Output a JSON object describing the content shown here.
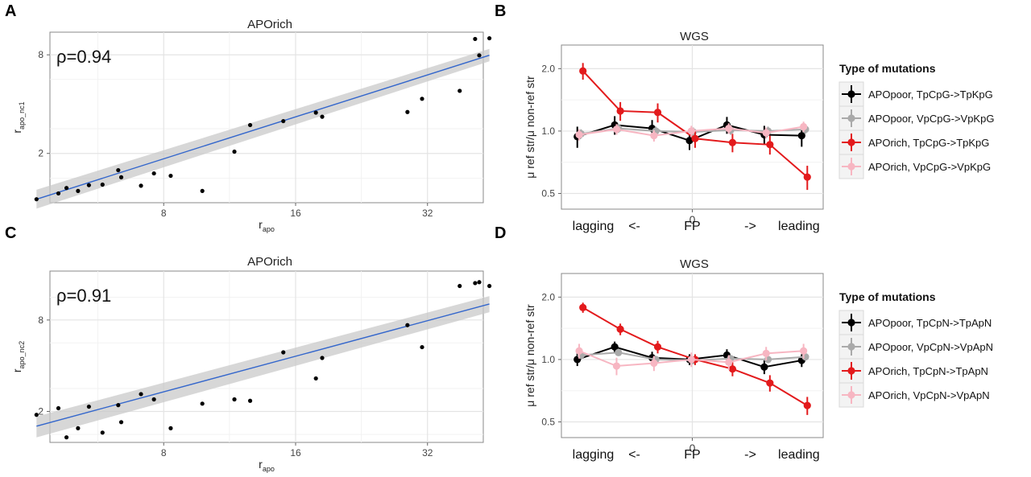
{
  "chart_data": [
    {
      "panel": "A",
      "type": "scatter",
      "title": "APOrich",
      "xlabel": "r",
      "xlabel_sub": "apo",
      "ylabel": "r",
      "ylabel_sub": "apo_nc1",
      "annotation": "ρ=0.94",
      "x_scale": "log2",
      "y_scale": "log2",
      "xlim": [
        3.8,
        46
      ],
      "ylim": [
        0.9,
        11
      ],
      "xticks": [
        8,
        16,
        32
      ],
      "yticks": [
        2,
        8
      ],
      "grid": true,
      "points": [
        [
          4.1,
          1.05
        ],
        [
          4.6,
          1.14
        ],
        [
          4.8,
          1.23
        ],
        [
          5.1,
          1.18
        ],
        [
          5.4,
          1.28
        ],
        [
          5.8,
          1.29
        ],
        [
          6.3,
          1.58
        ],
        [
          6.4,
          1.43
        ],
        [
          7.1,
          1.27
        ],
        [
          7.6,
          1.51
        ],
        [
          8.3,
          1.46
        ],
        [
          9.8,
          1.18
        ],
        [
          11.6,
          2.05
        ],
        [
          12.6,
          2.98
        ],
        [
          15.0,
          3.15
        ],
        [
          17.8,
          3.55
        ],
        [
          18.4,
          3.35
        ],
        [
          28.8,
          3.58
        ],
        [
          31.1,
          4.31
        ],
        [
          37.9,
          4.82
        ],
        [
          41.1,
          10.0
        ],
        [
          42.0,
          7.94
        ],
        [
          44.3,
          10.1
        ]
      ],
      "fit": {
        "x": [
          4.1,
          44.3
        ],
        "y": [
          1.05,
          7.95
        ],
        "band_lower": [
          0.92,
          7.3
        ],
        "band_upper": [
          1.2,
          8.7
        ]
      }
    },
    {
      "panel": "B",
      "type": "line",
      "title": "WGS",
      "ylabel": "μ ref str/μ non-ref str",
      "y_scale": "log",
      "ylim": [
        0.42,
        2.6
      ],
      "yticks": [
        0.5,
        1.0,
        2.0
      ],
      "xtick": "0",
      "x_bottom_labels": [
        "lagging",
        "<-",
        "FP",
        "->",
        "leading"
      ],
      "x_positions": [
        -6,
        -5,
        -4,
        -3,
        -2,
        -1,
        0,
        1,
        2,
        3,
        4,
        5,
        6
      ],
      "legend": {
        "title": "Type of mutations",
        "items": [
          "APOpoor, TpCpG->TpKpG",
          "APOpoor, VpCpG->VpKpG",
          "APOrich, TpCpG->TpKpG",
          "APOrich, VpCpG->VpKpG"
        ]
      },
      "series": [
        {
          "name": "APOpoor, TpCpG->TpKpG",
          "color": "#000000",
          "x": [
            -6,
            -4,
            -2,
            0,
            2,
            4,
            6
          ],
          "y": [
            0.94,
            1.07,
            1.03,
            0.9,
            1.07,
            0.96,
            0.95
          ],
          "err": [
            0.11,
            0.11,
            0.1,
            0.09,
            0.1,
            0.1,
            0.11
          ]
        },
        {
          "name": "APOpoor, VpCpG->VpKpG",
          "color": "#aaaaaa",
          "x": [
            -6,
            -4,
            -2,
            0,
            2,
            4,
            6
          ],
          "y": [
            0.97,
            1.03,
            1.0,
            0.99,
            1.01,
            1.0,
            1.02
          ],
          "err": [
            0.05,
            0.05,
            0.05,
            0.05,
            0.05,
            0.05,
            0.05
          ]
        },
        {
          "name": "APOrich, TpCpG->TpKpG",
          "color": "#e31a1c",
          "x": [
            -6,
            -4,
            -2,
            0,
            2,
            4,
            6
          ],
          "y": [
            1.95,
            1.25,
            1.23,
            0.92,
            0.88,
            0.86,
            0.6
          ],
          "err": [
            0.18,
            0.13,
            0.13,
            0.09,
            0.09,
            0.09,
            0.08
          ]
        },
        {
          "name": "APOrich, VpCpG->VpKpG",
          "color": "#f7b6c2",
          "x": [
            -6,
            -4,
            -2,
            0,
            2,
            4,
            6
          ],
          "y": [
            0.96,
            1.02,
            0.95,
            1.0,
            1.03,
            0.98,
            1.05
          ],
          "err": [
            0.06,
            0.06,
            0.06,
            0.06,
            0.06,
            0.06,
            0.06
          ]
        }
      ]
    },
    {
      "panel": "C",
      "type": "scatter",
      "title": "APOrich",
      "xlabel": "r",
      "xlabel_sub": "apo",
      "ylabel": "r",
      "ylabel_sub": "apo_nc2",
      "annotation": "ρ=0.91",
      "x_scale": "log2",
      "y_scale": "log2",
      "xlim": [
        3.8,
        46
      ],
      "ylim": [
        1.2,
        23
      ],
      "xticks": [
        8,
        16,
        32
      ],
      "yticks": [
        2,
        8
      ],
      "grid": true,
      "points": [
        [
          4.1,
          1.9
        ],
        [
          4.6,
          2.1
        ],
        [
          4.8,
          1.35
        ],
        [
          5.1,
          1.55
        ],
        [
          5.4,
          2.15
        ],
        [
          5.8,
          1.45
        ],
        [
          6.3,
          2.2
        ],
        [
          6.4,
          1.7
        ],
        [
          7.1,
          2.6
        ],
        [
          7.6,
          2.4
        ],
        [
          8.3,
          1.55
        ],
        [
          9.8,
          2.25
        ],
        [
          11.6,
          2.4
        ],
        [
          12.6,
          2.35
        ],
        [
          15.0,
          4.9
        ],
        [
          17.8,
          3.3
        ],
        [
          18.4,
          4.5
        ],
        [
          28.8,
          7.4
        ],
        [
          31.1,
          5.3
        ],
        [
          37.9,
          13.4
        ],
        [
          41.1,
          14.0
        ],
        [
          42.0,
          14.2
        ],
        [
          44.3,
          13.4
        ]
      ],
      "fit": {
        "x": [
          4.1,
          44.3
        ],
        "y": [
          1.6,
          10.2
        ],
        "band_lower": [
          1.35,
          9.0
        ],
        "band_upper": [
          1.85,
          11.5
        ]
      }
    },
    {
      "panel": "D",
      "type": "line",
      "title": "WGS",
      "ylabel": "μ ref str/μ non-ref str",
      "y_scale": "log",
      "ylim": [
        0.42,
        2.6
      ],
      "yticks": [
        0.5,
        1.0,
        2.0
      ],
      "xtick": "0",
      "x_bottom_labels": [
        "lagging",
        "<-",
        "FP",
        "->",
        "leading"
      ],
      "legend": {
        "title": "Type of mutations",
        "items": [
          "APOpoor, TpCpN->TpApN",
          "APOpoor, VpCpN->VpApN",
          "APOrich, TpCpN->TpApN",
          "APOrich, VpCpN->VpApN"
        ]
      },
      "series": [
        {
          "name": "APOpoor, TpCpN->TpApN",
          "color": "#000000",
          "x": [
            -6,
            -4,
            -2,
            0,
            2,
            4,
            6
          ],
          "y": [
            1.0,
            1.15,
            1.02,
            1.0,
            1.05,
            0.92,
            0.99
          ],
          "err": [
            0.07,
            0.07,
            0.07,
            0.06,
            0.07,
            0.07,
            0.07
          ]
        },
        {
          "name": "APOpoor, VpCpN->VpApN",
          "color": "#aaaaaa",
          "x": [
            -6,
            -4,
            -2,
            0,
            2,
            4,
            6
          ],
          "y": [
            1.05,
            1.08,
            1.0,
            0.99,
            1.01,
            1.0,
            1.03
          ],
          "err": [
            0.04,
            0.04,
            0.04,
            0.04,
            0.04,
            0.04,
            0.04
          ]
        },
        {
          "name": "APOrich, TpCpN->TpApN",
          "color": "#e31a1c",
          "x": [
            -6,
            -4,
            -2,
            0,
            2,
            4,
            6
          ],
          "y": [
            1.78,
            1.4,
            1.15,
            1.0,
            0.9,
            0.77,
            0.6
          ],
          "err": [
            0.1,
            0.09,
            0.08,
            0.06,
            0.07,
            0.07,
            0.06
          ]
        },
        {
          "name": "APOrich, VpCpN->VpApN",
          "color": "#f7b6c2",
          "x": [
            -6,
            -4,
            -2,
            0,
            2,
            4,
            6
          ],
          "y": [
            1.1,
            0.93,
            0.96,
            1.0,
            0.97,
            1.07,
            1.1
          ],
          "err": [
            0.09,
            0.09,
            0.08,
            0.08,
            0.08,
            0.08,
            0.09
          ]
        }
      ]
    }
  ]
}
